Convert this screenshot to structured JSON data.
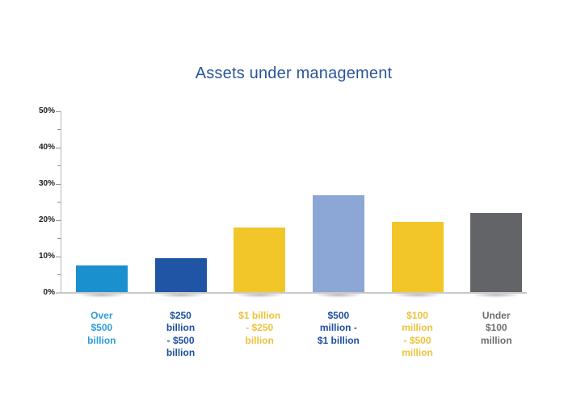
{
  "page": {
    "background": "#ffffff"
  },
  "chart_data": {
    "type": "bar",
    "title": "Assets under management",
    "title_color": "#2A5699",
    "categories": [
      "Over\n$500\nbillion",
      "$250\nbillion\n- $500\nbillion",
      "$1 billion\n- $250\nbillion",
      "$500\nmillion -\n$1 billion",
      "$100\nmillion\n- $500\nmillion",
      "Under\n$100\nmillion"
    ],
    "values": [
      7.5,
      9.5,
      18,
      27,
      19.5,
      22
    ],
    "unit": "%",
    "bar_colors": [
      "#1B90CE",
      "#2055A6",
      "#F2C628",
      "#8CA6D6",
      "#F2C628",
      "#636468"
    ],
    "category_label_colors": [
      "#2F9DD8",
      "#1E4F9D",
      "#ECC23D",
      "#1E4F9D",
      "#ECC23D",
      "#6F6F71"
    ],
    "xlabel": "",
    "ylabel": "",
    "ylim": [
      0,
      50
    ],
    "yticks": [
      "0%",
      "10%",
      "20%",
      "30%",
      "40%",
      "50%"
    ],
    "ytick_label_step": 10,
    "ytick_minor_step": 5,
    "grid": false,
    "legend": "none"
  }
}
